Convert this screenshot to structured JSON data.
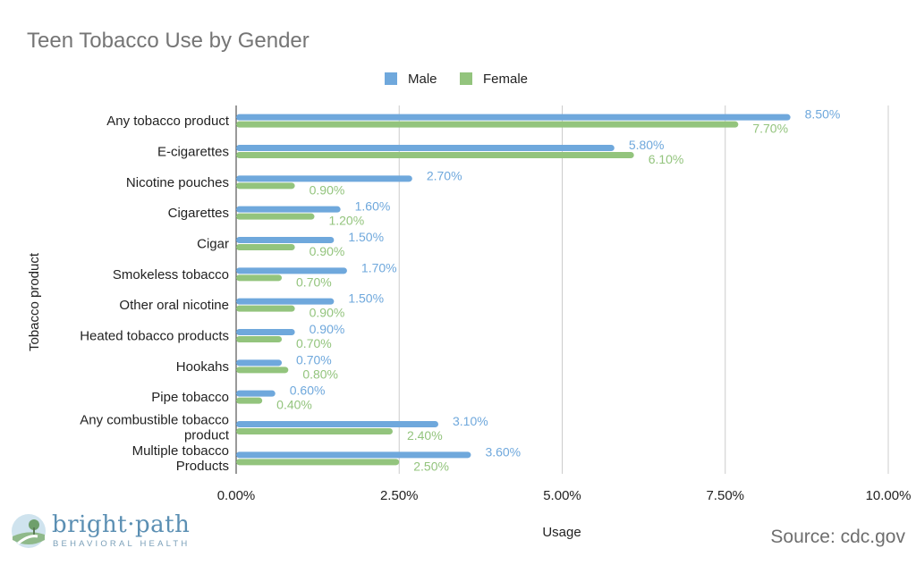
{
  "chart_data": {
    "type": "bar",
    "orientation": "horizontal",
    "title": "Teen Tobacco Use by Gender",
    "xlabel": "Usage",
    "ylabel": "Tobacco product",
    "xlim": [
      0,
      10
    ],
    "x_ticks": [
      "0.00%",
      "2.50%",
      "5.00%",
      "7.50%",
      "10.00%"
    ],
    "grid": true,
    "legend_position": "top-center",
    "categories": [
      [
        "Any tobacco product"
      ],
      [
        "E-cigarettes"
      ],
      [
        "Nicotine pouches"
      ],
      [
        "Cigarettes"
      ],
      [
        "Cigar"
      ],
      [
        "Smokeless tobacco"
      ],
      [
        "Other oral nicotine"
      ],
      [
        "Heated tobacco products"
      ],
      [
        "Hookahs"
      ],
      [
        "Pipe tobacco"
      ],
      [
        "Any combustible tobacco",
        "product"
      ],
      [
        "Multiple tobacco",
        "Products"
      ]
    ],
    "series": [
      {
        "name": "Male",
        "color": "#6fa8dc",
        "values": [
          8.5,
          5.8,
          2.7,
          1.6,
          1.5,
          1.7,
          1.5,
          0.9,
          0.7,
          0.6,
          3.1,
          3.6
        ],
        "labels": [
          "8.50%",
          "5.80%",
          "2.70%",
          "1.60%",
          "1.50%",
          "1.70%",
          "1.50%",
          "0.90%",
          "0.70%",
          "0.60%",
          "3.10%",
          "3.60%"
        ]
      },
      {
        "name": "Female",
        "color": "#93c47d",
        "values": [
          7.7,
          6.1,
          0.9,
          1.2,
          0.9,
          0.7,
          0.9,
          0.7,
          0.8,
          0.4,
          2.4,
          2.5
        ],
        "labels": [
          "7.70%",
          "6.10%",
          "0.90%",
          "1.20%",
          "0.90%",
          "0.70%",
          "0.90%",
          "0.70%",
          "0.80%",
          "0.40%",
          "2.40%",
          "2.50%"
        ]
      }
    ]
  },
  "branding": {
    "logo_word": "bright·path",
    "logo_sub": "BEHAVIORAL HEALTH",
    "source": "Source: cdc.gov"
  }
}
